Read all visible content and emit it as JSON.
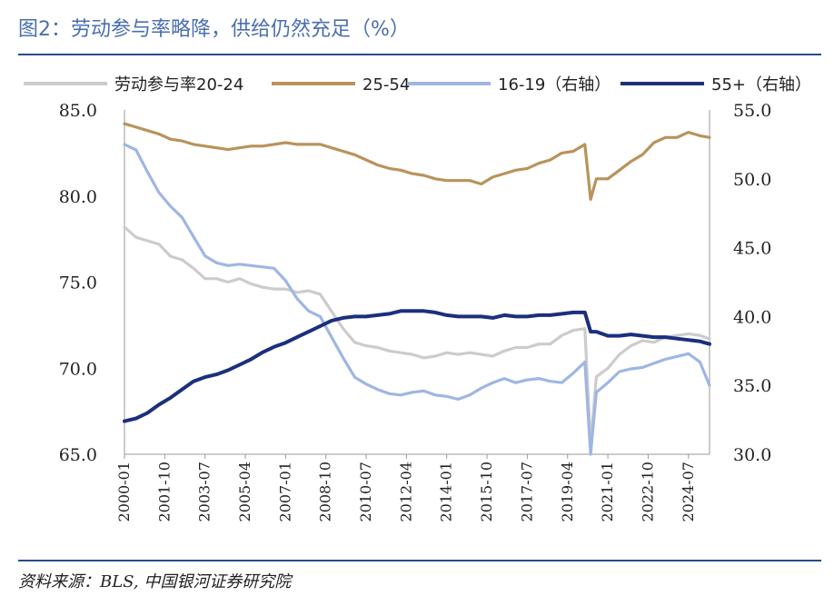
{
  "title": "图2：劳动参与率略降，供给仍然充足（%）",
  "source": "资料来源：BLS, 中国银河证券研究院",
  "chart_data": {
    "type": "line",
    "x_start": "2000-01",
    "x_end": "2025-06",
    "x_ticks": [
      "2000-01",
      "2001-10",
      "2003-07",
      "2005-04",
      "2007-01",
      "2008-10",
      "2010-07",
      "2012-04",
      "2014-01",
      "2015-10",
      "2017-07",
      "2019-04",
      "2021-01",
      "2022-10",
      "2024-07"
    ],
    "y_left": {
      "range": [
        65,
        85
      ],
      "ticks": [
        "85.0",
        "80.0",
        "75.0",
        "70.0",
        "65.0"
      ]
    },
    "y_right": {
      "range": [
        30,
        55
      ],
      "ticks": [
        "55.0",
        "50.0",
        "45.0",
        "40.0",
        "35.0",
        "30.0"
      ]
    },
    "legend_position": "top",
    "grid": false,
    "series": [
      {
        "name": "劳动参与率20-24",
        "axis": "left",
        "color": "#cccccc",
        "points": [
          [
            "2000-01",
            78.2
          ],
          [
            "2000-07",
            77.6
          ],
          [
            "2001-01",
            77.4
          ],
          [
            "2001-07",
            77.2
          ],
          [
            "2002-01",
            76.5
          ],
          [
            "2002-07",
            76.3
          ],
          [
            "2003-01",
            75.8
          ],
          [
            "2003-07",
            75.2
          ],
          [
            "2004-01",
            75.2
          ],
          [
            "2004-07",
            75.0
          ],
          [
            "2005-01",
            75.2
          ],
          [
            "2005-07",
            74.9
          ],
          [
            "2006-01",
            74.7
          ],
          [
            "2006-07",
            74.6
          ],
          [
            "2007-01",
            74.6
          ],
          [
            "2007-07",
            74.4
          ],
          [
            "2008-01",
            74.5
          ],
          [
            "2008-07",
            74.3
          ],
          [
            "2009-01",
            73.3
          ],
          [
            "2009-07",
            72.3
          ],
          [
            "2010-01",
            71.5
          ],
          [
            "2010-07",
            71.3
          ],
          [
            "2011-01",
            71.2
          ],
          [
            "2011-07",
            71.0
          ],
          [
            "2012-01",
            70.9
          ],
          [
            "2012-07",
            70.8
          ],
          [
            "2013-01",
            70.6
          ],
          [
            "2013-07",
            70.7
          ],
          [
            "2014-01",
            70.9
          ],
          [
            "2014-07",
            70.8
          ],
          [
            "2015-01",
            70.9
          ],
          [
            "2015-07",
            70.8
          ],
          [
            "2016-01",
            70.7
          ],
          [
            "2016-07",
            71.0
          ],
          [
            "2017-01",
            71.2
          ],
          [
            "2017-07",
            71.2
          ],
          [
            "2018-01",
            71.4
          ],
          [
            "2018-07",
            71.4
          ],
          [
            "2019-01",
            71.9
          ],
          [
            "2019-07",
            72.2
          ],
          [
            "2020-01",
            72.3
          ],
          [
            "2020-04",
            65.5
          ],
          [
            "2020-07",
            69.5
          ],
          [
            "2021-01",
            70.0
          ],
          [
            "2021-07",
            70.8
          ],
          [
            "2022-01",
            71.3
          ],
          [
            "2022-07",
            71.6
          ],
          [
            "2023-01",
            71.5
          ],
          [
            "2023-07",
            71.8
          ],
          [
            "2024-01",
            71.9
          ],
          [
            "2024-07",
            72.0
          ],
          [
            "2025-01",
            71.9
          ],
          [
            "2025-06",
            71.7
          ]
        ]
      },
      {
        "name": "25-54",
        "axis": "left",
        "color": "#b8935c",
        "points": [
          [
            "2000-01",
            84.2
          ],
          [
            "2000-07",
            84.0
          ],
          [
            "2001-01",
            83.8
          ],
          [
            "2001-07",
            83.6
          ],
          [
            "2002-01",
            83.3
          ],
          [
            "2002-07",
            83.2
          ],
          [
            "2003-01",
            83.0
          ],
          [
            "2003-07",
            82.9
          ],
          [
            "2004-01",
            82.8
          ],
          [
            "2004-07",
            82.7
          ],
          [
            "2005-01",
            82.8
          ],
          [
            "2005-07",
            82.9
          ],
          [
            "2006-01",
            82.9
          ],
          [
            "2006-07",
            83.0
          ],
          [
            "2007-01",
            83.1
          ],
          [
            "2007-07",
            83.0
          ],
          [
            "2008-01",
            83.0
          ],
          [
            "2008-07",
            83.0
          ],
          [
            "2009-01",
            82.8
          ],
          [
            "2009-07",
            82.6
          ],
          [
            "2010-01",
            82.4
          ],
          [
            "2010-07",
            82.1
          ],
          [
            "2011-01",
            81.8
          ],
          [
            "2011-07",
            81.6
          ],
          [
            "2012-01",
            81.5
          ],
          [
            "2012-07",
            81.3
          ],
          [
            "2013-01",
            81.2
          ],
          [
            "2013-07",
            81.0
          ],
          [
            "2014-01",
            80.9
          ],
          [
            "2014-07",
            80.9
          ],
          [
            "2015-01",
            80.9
          ],
          [
            "2015-07",
            80.7
          ],
          [
            "2016-01",
            81.1
          ],
          [
            "2016-07",
            81.3
          ],
          [
            "2017-01",
            81.5
          ],
          [
            "2017-07",
            81.6
          ],
          [
            "2018-01",
            81.9
          ],
          [
            "2018-07",
            82.1
          ],
          [
            "2019-01",
            82.5
          ],
          [
            "2019-07",
            82.6
          ],
          [
            "2020-01",
            83.0
          ],
          [
            "2020-04",
            79.8
          ],
          [
            "2020-07",
            81.0
          ],
          [
            "2021-01",
            81.0
          ],
          [
            "2021-07",
            81.5
          ],
          [
            "2022-01",
            82.0
          ],
          [
            "2022-07",
            82.4
          ],
          [
            "2023-01",
            83.1
          ],
          [
            "2023-07",
            83.4
          ],
          [
            "2024-01",
            83.4
          ],
          [
            "2024-07",
            83.7
          ],
          [
            "2025-01",
            83.5
          ],
          [
            "2025-06",
            83.4
          ]
        ]
      },
      {
        "name": "16-19（右轴）",
        "axis": "right",
        "color": "#9fb6e3",
        "points": [
          [
            "2000-01",
            52.5
          ],
          [
            "2000-07",
            52.1
          ],
          [
            "2001-01",
            50.5
          ],
          [
            "2001-07",
            49.0
          ],
          [
            "2002-01",
            48.0
          ],
          [
            "2002-07",
            47.2
          ],
          [
            "2003-01",
            45.8
          ],
          [
            "2003-07",
            44.4
          ],
          [
            "2004-01",
            43.9
          ],
          [
            "2004-07",
            43.7
          ],
          [
            "2005-01",
            43.8
          ],
          [
            "2005-07",
            43.7
          ],
          [
            "2006-01",
            43.6
          ],
          [
            "2006-07",
            43.5
          ],
          [
            "2007-01",
            42.6
          ],
          [
            "2007-07",
            41.3
          ],
          [
            "2008-01",
            40.4
          ],
          [
            "2008-07",
            40.0
          ],
          [
            "2009-01",
            38.5
          ],
          [
            "2009-07",
            37.0
          ],
          [
            "2010-01",
            35.6
          ],
          [
            "2010-07",
            35.1
          ],
          [
            "2011-01",
            34.7
          ],
          [
            "2011-07",
            34.4
          ],
          [
            "2012-01",
            34.3
          ],
          [
            "2012-07",
            34.5
          ],
          [
            "2013-01",
            34.6
          ],
          [
            "2013-07",
            34.3
          ],
          [
            "2014-01",
            34.2
          ],
          [
            "2014-07",
            34.0
          ],
          [
            "2015-01",
            34.3
          ],
          [
            "2015-07",
            34.8
          ],
          [
            "2016-01",
            35.2
          ],
          [
            "2016-07",
            35.5
          ],
          [
            "2017-01",
            35.2
          ],
          [
            "2017-07",
            35.4
          ],
          [
            "2018-01",
            35.5
          ],
          [
            "2018-07",
            35.3
          ],
          [
            "2019-01",
            35.2
          ],
          [
            "2019-07",
            35.9
          ],
          [
            "2020-01",
            36.7
          ],
          [
            "2020-04",
            30.0
          ],
          [
            "2020-07",
            34.5
          ],
          [
            "2021-01",
            35.2
          ],
          [
            "2021-07",
            36.0
          ],
          [
            "2022-01",
            36.2
          ],
          [
            "2022-07",
            36.3
          ],
          [
            "2023-01",
            36.6
          ],
          [
            "2023-07",
            36.9
          ],
          [
            "2024-01",
            37.1
          ],
          [
            "2024-07",
            37.3
          ],
          [
            "2025-01",
            36.7
          ],
          [
            "2025-06",
            35.0
          ]
        ]
      },
      {
        "name": "55+（右轴）",
        "axis": "right",
        "color": "#1b2f7e",
        "points": [
          [
            "2000-01",
            32.4
          ],
          [
            "2000-07",
            32.6
          ],
          [
            "2001-01",
            33.0
          ],
          [
            "2001-07",
            33.6
          ],
          [
            "2002-01",
            34.1
          ],
          [
            "2002-07",
            34.7
          ],
          [
            "2003-01",
            35.3
          ],
          [
            "2003-07",
            35.6
          ],
          [
            "2004-01",
            35.8
          ],
          [
            "2004-07",
            36.1
          ],
          [
            "2005-01",
            36.5
          ],
          [
            "2005-07",
            36.9
          ],
          [
            "2006-01",
            37.4
          ],
          [
            "2006-07",
            37.8
          ],
          [
            "2007-01",
            38.1
          ],
          [
            "2007-07",
            38.5
          ],
          [
            "2008-01",
            38.9
          ],
          [
            "2008-07",
            39.3
          ],
          [
            "2009-01",
            39.7
          ],
          [
            "2009-07",
            39.9
          ],
          [
            "2010-01",
            40.0
          ],
          [
            "2010-07",
            40.0
          ],
          [
            "2011-01",
            40.1
          ],
          [
            "2011-07",
            40.2
          ],
          [
            "2012-01",
            40.4
          ],
          [
            "2012-07",
            40.4
          ],
          [
            "2013-01",
            40.4
          ],
          [
            "2013-07",
            40.3
          ],
          [
            "2014-01",
            40.1
          ],
          [
            "2014-07",
            40.0
          ],
          [
            "2015-01",
            40.0
          ],
          [
            "2015-07",
            40.0
          ],
          [
            "2016-01",
            39.9
          ],
          [
            "2016-07",
            40.1
          ],
          [
            "2017-01",
            40.0
          ],
          [
            "2017-07",
            40.0
          ],
          [
            "2018-01",
            40.1
          ],
          [
            "2018-07",
            40.1
          ],
          [
            "2019-01",
            40.2
          ],
          [
            "2019-07",
            40.3
          ],
          [
            "2020-01",
            40.3
          ],
          [
            "2020-04",
            38.9
          ],
          [
            "2020-07",
            38.9
          ],
          [
            "2021-01",
            38.6
          ],
          [
            "2021-07",
            38.6
          ],
          [
            "2022-01",
            38.7
          ],
          [
            "2022-07",
            38.6
          ],
          [
            "2023-01",
            38.5
          ],
          [
            "2023-07",
            38.5
          ],
          [
            "2024-01",
            38.4
          ],
          [
            "2024-07",
            38.3
          ],
          [
            "2025-01",
            38.2
          ],
          [
            "2025-06",
            38.0
          ]
        ]
      }
    ]
  }
}
